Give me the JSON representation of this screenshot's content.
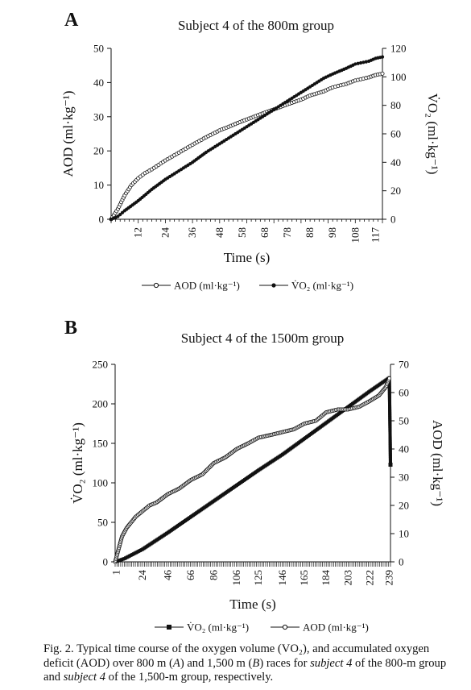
{
  "chart_data": [
    {
      "panel": "A",
      "type": "line",
      "title": "Subject 4 of the 800m group",
      "xlabel": "Time (s)",
      "ylabel_left": "AOD (ml·kg⁻¹)",
      "ylabel_right": "V̇O₂ (ml·kg⁻¹)",
      "x_tick_labels": [
        "12",
        "24",
        "36",
        "48",
        "58",
        "68",
        "78",
        "88",
        "98",
        "108",
        "117"
      ],
      "xlim": [
        0,
        120
      ],
      "ylim_left": [
        0,
        50
      ],
      "ylim_right": [
        0,
        120
      ],
      "yticks_left": [
        "0",
        "10",
        "20",
        "30",
        "40",
        "50"
      ],
      "yticks_right": [
        "0",
        "20",
        "40",
        "60",
        "80",
        "100",
        "120"
      ],
      "legend": [
        "AOD (ml·kg⁻¹)",
        "V̇O₂ (ml·kg⁻¹)"
      ],
      "series": [
        {
          "name": "AOD (ml·kg⁻¹)",
          "axis": "left",
          "marker": "open-circle",
          "x": [
            0,
            3,
            6,
            9,
            12,
            15,
            18,
            24,
            30,
            36,
            42,
            48,
            54,
            58,
            64,
            68,
            74,
            78,
            84,
            88,
            94,
            98,
            104,
            108,
            114,
            117,
            120
          ],
          "y": [
            0,
            3,
            7,
            10,
            12,
            13.5,
            14.6,
            17.2,
            19.5,
            21.8,
            24,
            26,
            27.6,
            28.7,
            30.2,
            31.2,
            32.6,
            33.6,
            35,
            36.2,
            37.4,
            38.6,
            39.6,
            40.6,
            41.5,
            42.2,
            42.6
          ]
        },
        {
          "name": "V̇O₂ (ml·kg⁻¹)",
          "axis": "right",
          "marker": "filled-circle",
          "x": [
            0,
            3,
            6,
            12,
            18,
            24,
            30,
            36,
            42,
            48,
            54,
            58,
            64,
            68,
            74,
            78,
            84,
            88,
            94,
            98,
            104,
            108,
            114,
            117,
            120
          ],
          "y": [
            0,
            2,
            6,
            13,
            21,
            28,
            34,
            40,
            47,
            53,
            59,
            63,
            69,
            73,
            79,
            83,
            89,
            93,
            99,
            102,
            106,
            109,
            111,
            113,
            114
          ]
        }
      ]
    },
    {
      "panel": "B",
      "type": "line",
      "title": "Subject 4 of the 1500m group",
      "xlabel": "Time (s)",
      "ylabel_left": "V̇O₂ (ml·kg⁻¹)",
      "ylabel_right": "AOD (ml·kg⁻¹)",
      "x_tick_labels": [
        "1",
        "24",
        "46",
        "66",
        "86",
        "106",
        "125",
        "146",
        "165",
        "184",
        "203",
        "222",
        "239"
      ],
      "xlim": [
        0,
        240
      ],
      "ylim_left": [
        0,
        250
      ],
      "ylim_right": [
        0,
        70
      ],
      "yticks_left": [
        "0",
        "50",
        "100",
        "150",
        "200",
        "250"
      ],
      "yticks_right": [
        "0",
        "10",
        "20",
        "30",
        "40",
        "50",
        "60",
        "70"
      ],
      "legend": [
        "V̇O₂ (ml·kg⁻¹)",
        "AOD (ml·kg⁻¹)"
      ],
      "series": [
        {
          "name": "V̇O₂ (ml·kg⁻¹)",
          "axis": "left",
          "marker": "filled-square",
          "x": [
            0,
            8,
            16,
            24,
            46,
            66,
            86,
            106,
            125,
            146,
            165,
            184,
            203,
            222,
            239,
            240
          ],
          "y": [
            0,
            4,
            10,
            16,
            37,
            57,
            77,
            97,
            116,
            136,
            156,
            176,
            196,
            216,
            233,
            123
          ]
        },
        {
          "name": "AOD (ml·kg⁻¹)",
          "axis": "right",
          "marker": "open-circle",
          "x": [
            0,
            2,
            4,
            6,
            10,
            14,
            18,
            24,
            30,
            36,
            46,
            56,
            66,
            76,
            86,
            96,
            106,
            116,
            125,
            136,
            146,
            156,
            165,
            175,
            184,
            194,
            203,
            213,
            222,
            230,
            236,
            239
          ],
          "y": [
            0,
            3,
            6,
            9,
            12,
            14,
            16,
            18,
            20,
            21,
            24,
            26,
            29,
            31,
            35,
            37,
            40,
            42,
            44,
            45,
            46,
            47,
            49,
            50,
            53,
            54,
            54,
            55,
            57,
            59,
            62,
            65
          ]
        }
      ]
    }
  ],
  "caption": {
    "segments": [
      {
        "t": "Fig. 2. Typical time course of the oxygen volume (V",
        "i": false
      },
      {
        "t": "O₂",
        "i": false
      },
      {
        "t": "), and accumulated oxygen deficit (AOD) over 800 m (",
        "i": false
      },
      {
        "t": "A",
        "i": true
      },
      {
        "t": ") and 1,500 m (",
        "i": false
      },
      {
        "t": "B",
        "i": true
      },
      {
        "t": ") races for ",
        "i": false
      },
      {
        "t": "subject 4",
        "i": true
      },
      {
        "t": " of the 800-m group and ",
        "i": false
      },
      {
        "t": "subject 4",
        "i": true
      },
      {
        "t": " of the 1,500-m group, respectively.",
        "i": false
      }
    ]
  }
}
